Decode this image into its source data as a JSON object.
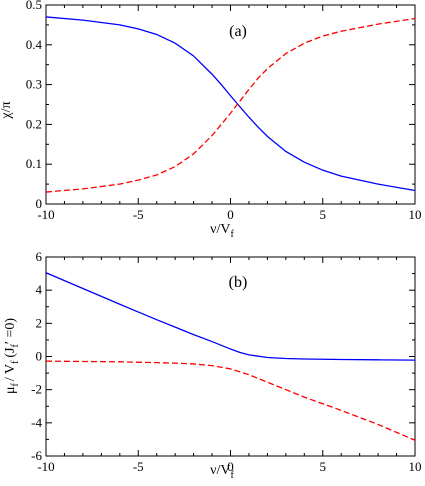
{
  "chart_data": [
    {
      "type": "line",
      "panel_label": "(a)",
      "xlabel": {
        "main": "ν/V",
        "sub": "f"
      },
      "ylabel": {
        "main": "χ/π",
        "sub": ""
      },
      "xlim": [
        -10,
        10
      ],
      "ylim": [
        0,
        0.5
      ],
      "xticks": [
        -10,
        -5,
        0,
        5,
        10
      ],
      "yticks": [
        0,
        0.1,
        0.2,
        0.3,
        0.4,
        0.5
      ],
      "ytick_labels": [
        "0",
        "0.1",
        "0.2",
        "0.3",
        "0.4",
        "0.5"
      ],
      "grid": false,
      "series": [
        {
          "color": "#0000ff",
          "dash": "solid",
          "x": [
            -10,
            -8,
            -6,
            -5,
            -4,
            -3,
            -2,
            -1,
            -0.5,
            0,
            0.5,
            1,
            1.5,
            2,
            3,
            4,
            5,
            6,
            8,
            10
          ],
          "y": [
            0.47,
            0.462,
            0.45,
            0.44,
            0.426,
            0.404,
            0.372,
            0.326,
            0.3,
            0.272,
            0.245,
            0.218,
            0.193,
            0.17,
            0.132,
            0.105,
            0.085,
            0.07,
            0.05,
            0.034
          ]
        },
        {
          "color": "#ff0000",
          "dash": "dashed",
          "x": [
            -10,
            -8,
            -6,
            -5,
            -4,
            -3,
            -2,
            -1,
            -0.5,
            0,
            0.5,
            1,
            1.5,
            2,
            3,
            4,
            5,
            6,
            8,
            10
          ],
          "y": [
            0.03,
            0.038,
            0.05,
            0.06,
            0.073,
            0.094,
            0.126,
            0.172,
            0.2,
            0.228,
            0.258,
            0.288,
            0.316,
            0.34,
            0.378,
            0.404,
            0.422,
            0.434,
            0.452,
            0.466
          ]
        }
      ]
    },
    {
      "type": "line",
      "panel_label": "(b)",
      "xlabel": {
        "main": "ν/V",
        "sub": "f"
      },
      "ylabel": {
        "main": "μ",
        "sub": "f",
        "rest": "/ V",
        "sub2": "f",
        "tail": "(J",
        "sub3": "f",
        "end": "′ =0)"
      },
      "xlim": [
        -10,
        10
      ],
      "ylim": [
        -6,
        6
      ],
      "xticks": [
        -10,
        -5,
        0,
        5,
        10
      ],
      "yticks": [
        -6,
        -4,
        -2,
        0,
        2,
        4,
        6
      ],
      "ytick_labels": [
        "-6",
        "-4",
        "-2",
        "0",
        "2",
        "4",
        "6"
      ],
      "grid": false,
      "series": [
        {
          "color": "#0000ff",
          "dash": "solid",
          "x": [
            -10,
            -8,
            -6,
            -4,
            -3,
            -2,
            -1,
            0,
            0.5,
            1,
            2,
            3,
            4,
            6,
            8,
            10
          ],
          "y": [
            5.05,
            4.1,
            3.15,
            2.22,
            1.77,
            1.32,
            0.9,
            0.45,
            0.25,
            0.1,
            -0.06,
            -0.12,
            -0.15,
            -0.18,
            -0.2,
            -0.22
          ]
        },
        {
          "color": "#ff0000",
          "dash": "dashed",
          "x": [
            -10,
            -8,
            -6,
            -4,
            -3,
            -2,
            -1,
            0,
            0.5,
            1,
            2,
            3,
            4,
            6,
            8,
            10
          ],
          "y": [
            -0.28,
            -0.3,
            -0.32,
            -0.37,
            -0.4,
            -0.45,
            -0.55,
            -0.75,
            -0.92,
            -1.1,
            -1.55,
            -2.0,
            -2.45,
            -3.25,
            -4.1,
            -5.05
          ]
        }
      ]
    }
  ]
}
